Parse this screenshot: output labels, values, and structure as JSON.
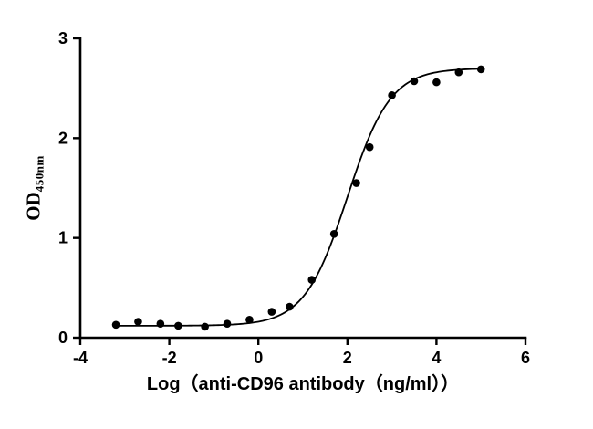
{
  "chart_data": {
    "type": "scatter",
    "title": "",
    "xlabel": "Log（anti-CD96 antibody（ng/ml））",
    "ylabel": "OD",
    "ylabel_sub": "450nm",
    "xlim": [
      -4,
      6
    ],
    "ylim": [
      0,
      3
    ],
    "xticks": [
      -4,
      -2,
      0,
      2,
      4,
      6
    ],
    "yticks": [
      0,
      1,
      2,
      3
    ],
    "grid": false,
    "legend": "none",
    "marker_color": "#000000",
    "curve_color": "#000000",
    "points": [
      [
        -3.2,
        0.13
      ],
      [
        -2.7,
        0.16
      ],
      [
        -2.2,
        0.14
      ],
      [
        -1.8,
        0.12
      ],
      [
        -1.2,
        0.11
      ],
      [
        -0.7,
        0.14
      ],
      [
        -0.2,
        0.18
      ],
      [
        0.3,
        0.26
      ],
      [
        0.7,
        0.31
      ],
      [
        1.2,
        0.58
      ],
      [
        1.7,
        1.04
      ],
      [
        2.2,
        1.55
      ],
      [
        2.5,
        1.91
      ],
      [
        3.0,
        2.43
      ],
      [
        3.5,
        2.57
      ],
      [
        4.0,
        2.56
      ],
      [
        4.5,
        2.66
      ],
      [
        5.0,
        2.69
      ]
    ],
    "fit_curve": {
      "model": "4PL",
      "bottom": 0.12,
      "top": 2.7,
      "logEC50": 2.0,
      "hill": 0.9,
      "x_start": -3.2,
      "x_end": 5.0
    }
  }
}
